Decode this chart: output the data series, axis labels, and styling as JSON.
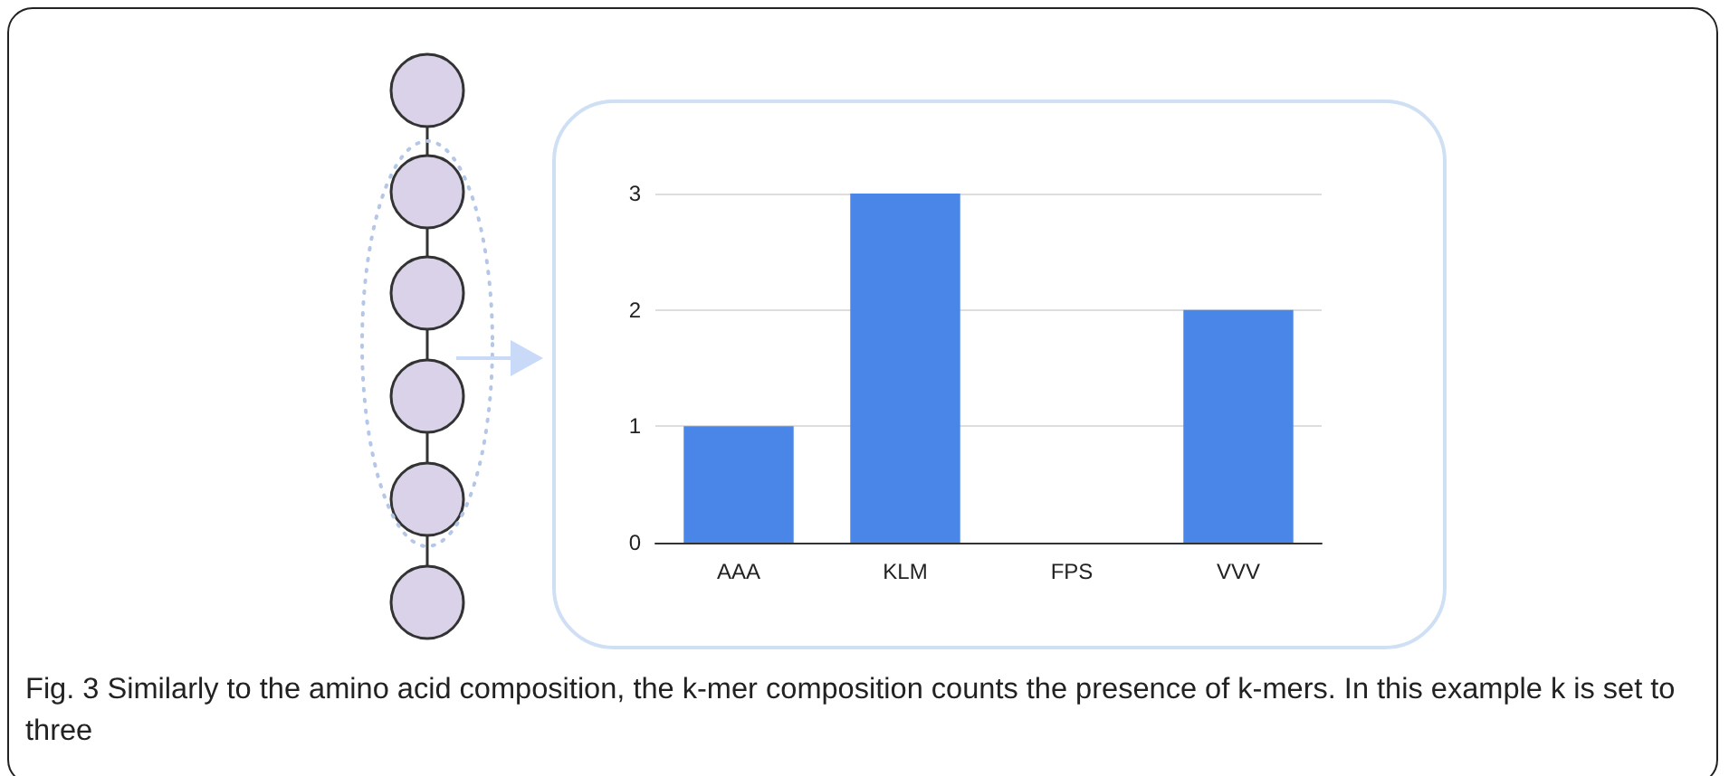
{
  "chart_data": {
    "type": "bar",
    "categories": [
      "AAA",
      "KLM",
      "FPS",
      "VVV"
    ],
    "values": [
      1,
      3,
      0,
      2
    ],
    "color": "#4a86e8",
    "ylim": [
      0,
      3
    ],
    "yticks": [
      0,
      1,
      2,
      3
    ],
    "grid": "y",
    "annotations": [
      "Fig. 3 Similarly to the amino acid composition, the k-mer composition counts the presence of k-mers. In this example k is set to three"
    ]
  }
}
